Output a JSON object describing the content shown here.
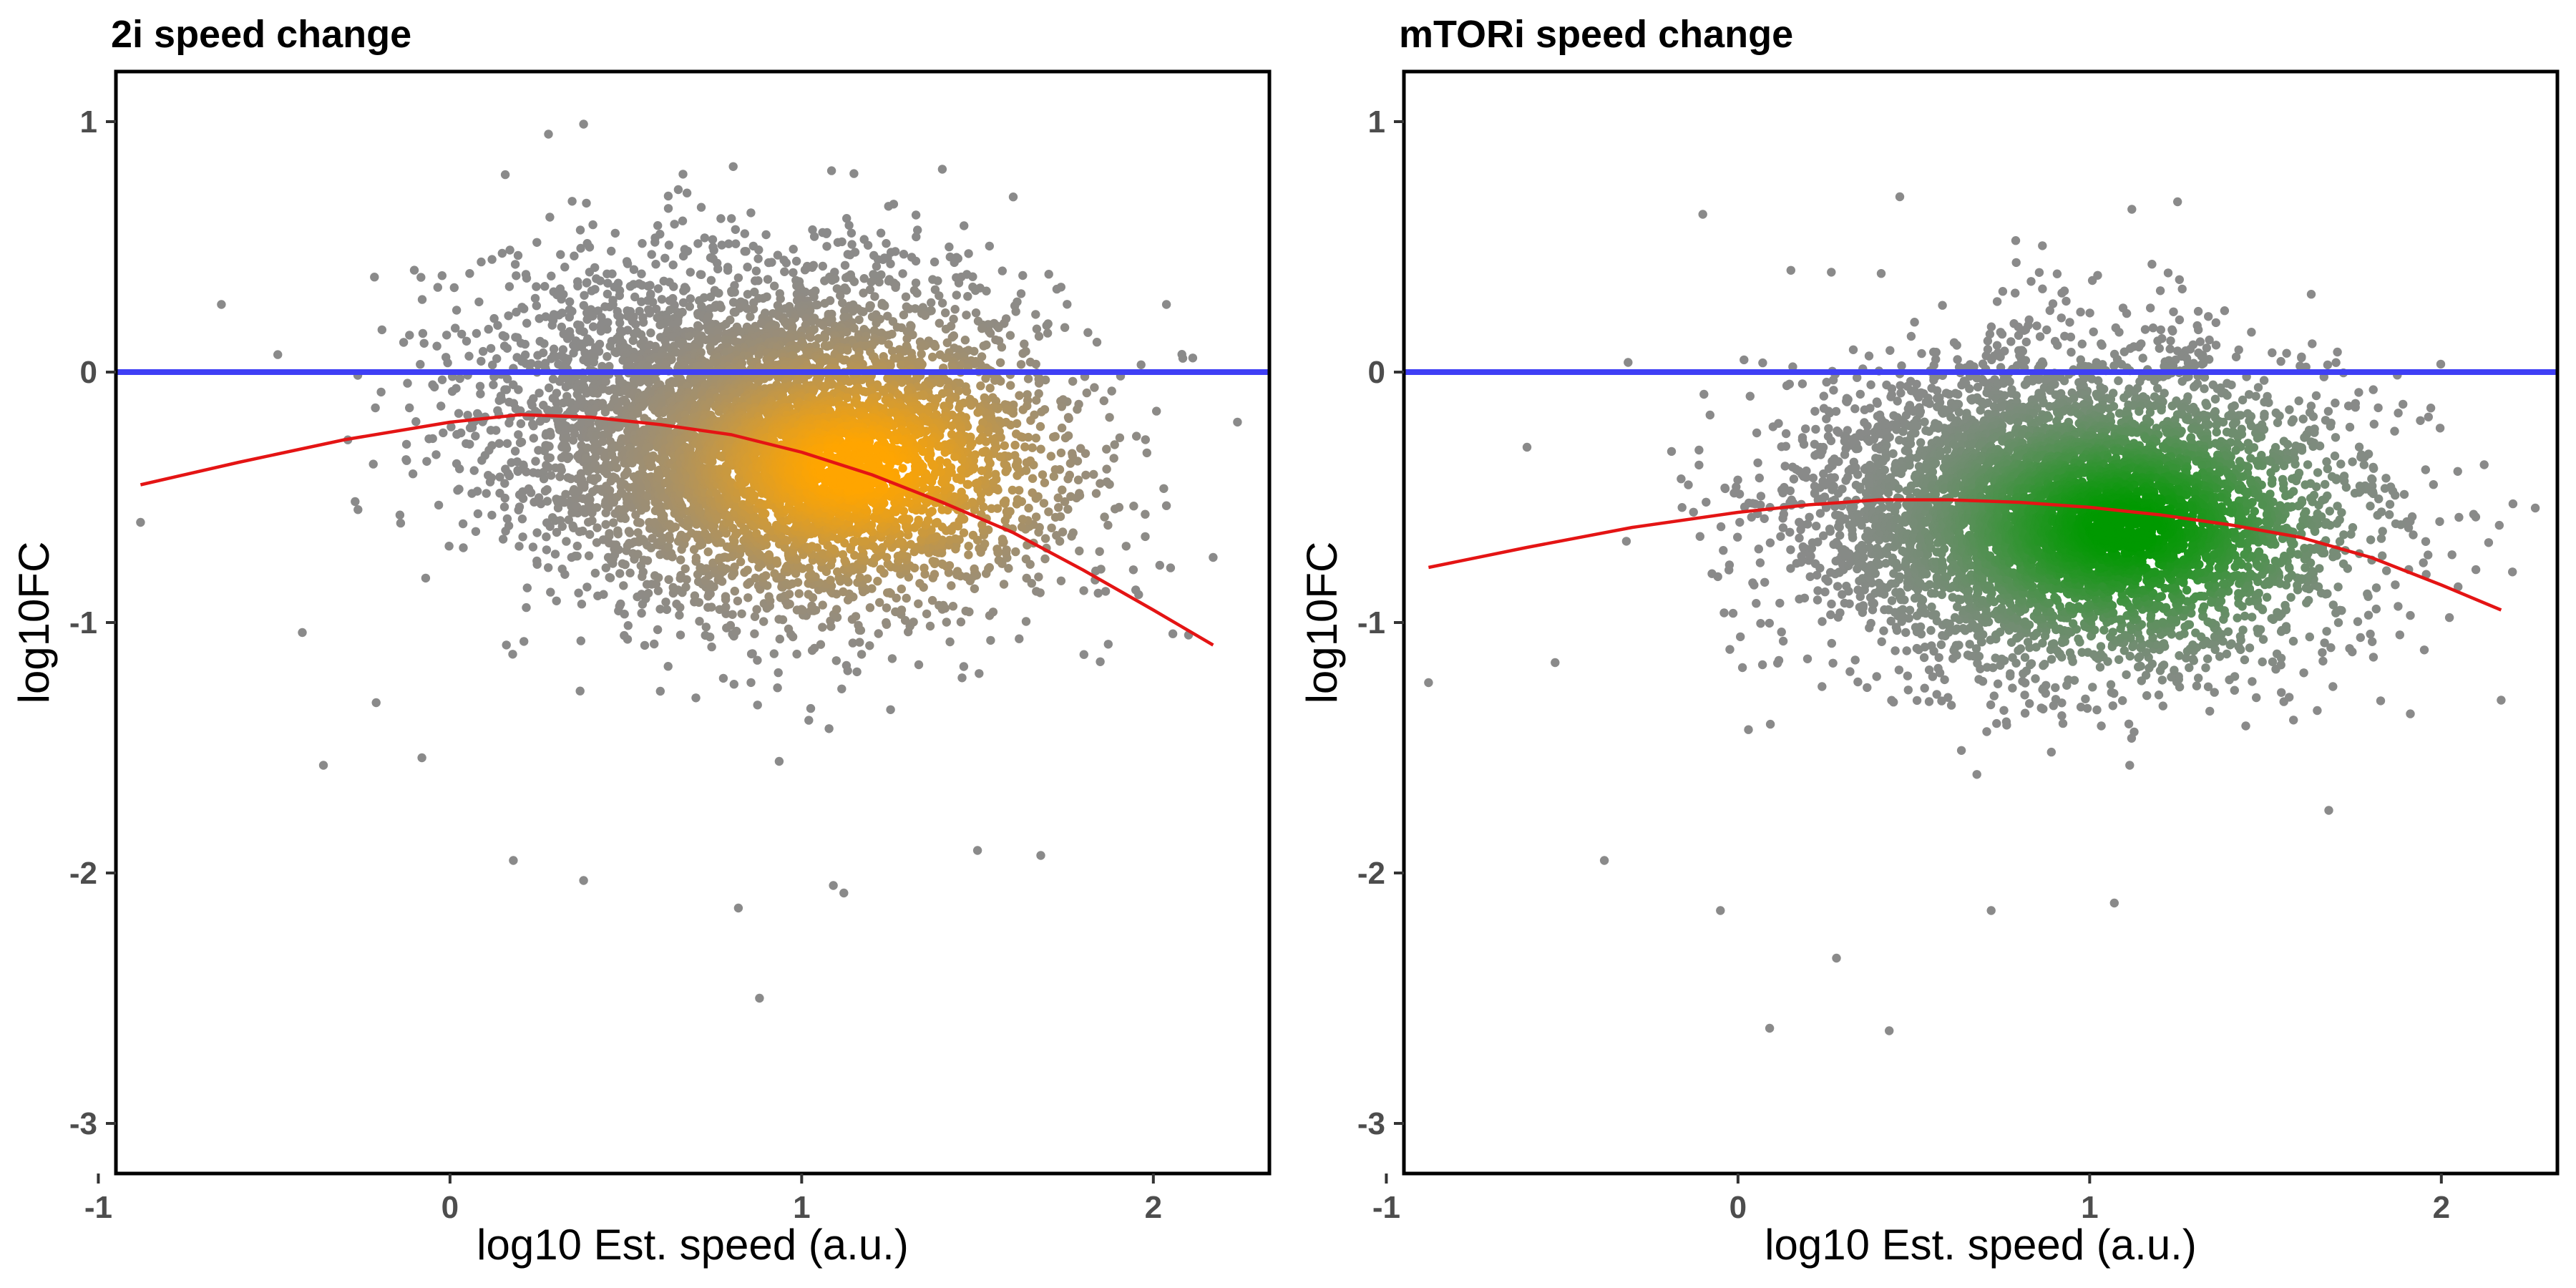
{
  "colors": {
    "point_grey": "#8a8a8a",
    "panel1_density": "#ffa500",
    "panel2_density": "#009900",
    "zero_line": "#3f3ff5",
    "trend_line": "#e41414",
    "frame": "#000000"
  },
  "chart_data": [
    {
      "type": "scatter",
      "title": "2i speed change",
      "xlabel": "log10 Est. speed (a.u.)",
      "ylabel": "log10FC",
      "xlim": [
        -0.95,
        2.33
      ],
      "ylim": [
        -3.2,
        1.2
      ],
      "xticks": [
        -1,
        0,
        1,
        2
      ],
      "yticks": [
        1,
        0,
        -1,
        -2,
        -3
      ],
      "x_tick_labels": [
        "-1",
        "0",
        "1",
        "2"
      ],
      "y_tick_labels": [
        "1",
        "0",
        "-1",
        "-2",
        "-3"
      ],
      "grid": false,
      "legend": "none",
      "point_cloud": {
        "n": 6000,
        "x_center": 0.92,
        "x_sd": 0.38,
        "y_intercept": -0.27,
        "y_slope": -0.12,
        "y_sd": 0.33,
        "density_peak": [
          1.15,
          -0.38
        ],
        "density_color": "#ffa500"
      },
      "outliers": [
        [
          -0.88,
          -0.6
        ],
        [
          -0.42,
          -1.04
        ],
        [
          -0.36,
          -1.57
        ],
        [
          -0.21,
          -1.32
        ],
        [
          -0.08,
          -1.54
        ],
        [
          0.18,
          -1.95
        ],
        [
          0.38,
          -2.03
        ],
        [
          0.82,
          -2.14
        ],
        [
          0.88,
          -2.5
        ],
        [
          1.09,
          -2.05
        ],
        [
          1.12,
          -2.08
        ],
        [
          1.5,
          -1.91
        ],
        [
          1.68,
          -1.93
        ],
        [
          2.17,
          -0.74
        ],
        [
          2.1,
          -1.05
        ],
        [
          1.4,
          0.81
        ],
        [
          0.38,
          0.99
        ],
        [
          0.28,
          0.95
        ],
        [
          -0.65,
          0.27
        ],
        [
          1.95,
          -0.87
        ]
      ],
      "hlines": [
        0
      ],
      "trend": {
        "x": [
          -0.88,
          -0.6,
          -0.3,
          0.0,
          0.2,
          0.4,
          0.6,
          0.8,
          1.0,
          1.2,
          1.4,
          1.6,
          1.8,
          2.0,
          2.17
        ],
        "y": [
          -0.45,
          -0.36,
          -0.27,
          -0.2,
          -0.17,
          -0.18,
          -0.21,
          -0.25,
          -0.32,
          -0.41,
          -0.52,
          -0.64,
          -0.79,
          -0.95,
          -1.09
        ]
      }
    },
    {
      "type": "scatter",
      "title": "mTORi speed change",
      "xlabel": "log10 Est. speed (a.u.)",
      "ylabel": "log10FC",
      "xlim": [
        -0.95,
        2.33
      ],
      "ylim": [
        -3.2,
        1.2
      ],
      "xticks": [
        -1,
        0,
        1,
        2
      ],
      "yticks": [
        1,
        0,
        -1,
        -2,
        -3
      ],
      "x_tick_labels": [
        "-1",
        "0",
        "1",
        "2"
      ],
      "y_tick_labels": [
        "1",
        "0",
        "-1",
        "-2",
        "-3"
      ],
      "grid": false,
      "legend": "none",
      "point_cloud": {
        "n": 6000,
        "x_center": 0.95,
        "x_sd": 0.36,
        "y_intercept": -0.55,
        "y_slope": -0.02,
        "y_sd": 0.3,
        "density_peak": [
          1.1,
          -0.62
        ],
        "density_color": "#009900"
      },
      "outliers": [
        [
          -0.88,
          -1.24
        ],
        [
          -0.6,
          -0.3
        ],
        [
          -0.52,
          -1.16
        ],
        [
          -0.38,
          -1.95
        ],
        [
          -0.05,
          -2.15
        ],
        [
          0.09,
          -2.62
        ],
        [
          0.28,
          -2.34
        ],
        [
          0.43,
          -2.63
        ],
        [
          0.72,
          -2.15
        ],
        [
          1.07,
          -2.12
        ],
        [
          1.68,
          -1.75
        ],
        [
          2.17,
          -1.31
        ],
        [
          1.12,
          0.65
        ],
        [
          1.25,
          0.68
        ],
        [
          0.46,
          0.7
        ],
        [
          -0.1,
          0.63
        ],
        [
          2.05,
          -0.58
        ],
        [
          1.92,
          -0.65
        ]
      ],
      "hlines": [
        0
      ],
      "trend": {
        "x": [
          -0.88,
          -0.6,
          -0.3,
          0.0,
          0.2,
          0.4,
          0.6,
          0.8,
          1.0,
          1.2,
          1.4,
          1.6,
          1.8,
          2.0,
          2.17
        ],
        "y": [
          -0.78,
          -0.7,
          -0.62,
          -0.56,
          -0.53,
          -0.51,
          -0.51,
          -0.52,
          -0.54,
          -0.57,
          -0.61,
          -0.66,
          -0.74,
          -0.85,
          -0.95
        ]
      }
    }
  ]
}
